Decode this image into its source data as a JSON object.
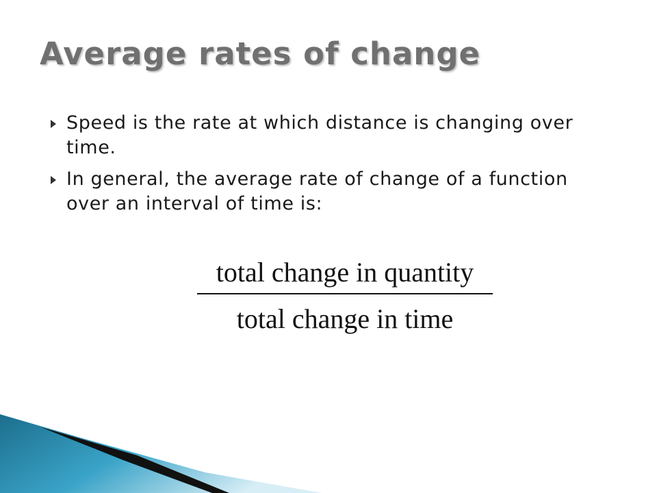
{
  "title": "Average rates of change",
  "bullets": [
    "Speed is the rate at which distance is changing over time.",
    "In general, the average rate of change of a function over an interval of time is:"
  ],
  "fraction": {
    "numerator": "total change in quantity",
    "denominator": "total change in time"
  }
}
